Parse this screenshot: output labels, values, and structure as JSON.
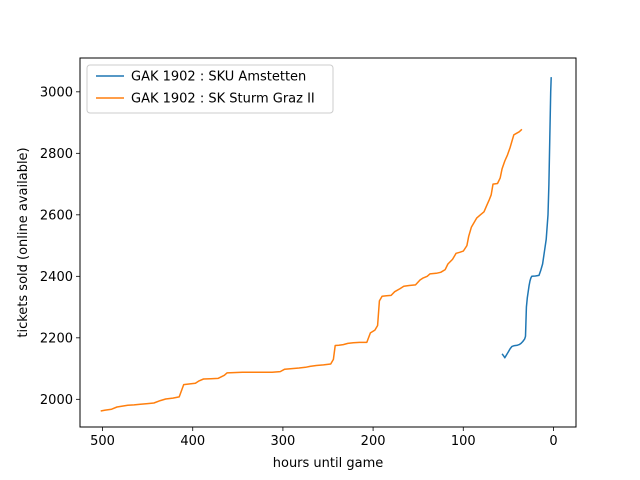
{
  "chart_data": {
    "type": "line",
    "xlabel": "hours until game",
    "ylabel": "tickets sold (online available)",
    "xlim": [
      525,
      -25
    ],
    "ylim": [
      1910,
      3110
    ],
    "x_ticks": [
      500,
      400,
      300,
      200,
      100,
      0
    ],
    "y_ticks": [
      2000,
      2200,
      2400,
      2600,
      2800,
      3000
    ],
    "grid": false,
    "legend_position": "top-left",
    "series": [
      {
        "name": "GAK 1902 : SKU Amstetten",
        "color": "#1f77b4",
        "points": [
          [
            57,
            2148
          ],
          [
            55,
            2140
          ],
          [
            54,
            2135
          ],
          [
            52,
            2145
          ],
          [
            50,
            2155
          ],
          [
            48,
            2165
          ],
          [
            46,
            2172
          ],
          [
            44,
            2174
          ],
          [
            42,
            2175
          ],
          [
            40,
            2176
          ],
          [
            38,
            2178
          ],
          [
            36,
            2182
          ],
          [
            34,
            2188
          ],
          [
            32,
            2196
          ],
          [
            31,
            2205
          ],
          [
            30,
            2300
          ],
          [
            29,
            2330
          ],
          [
            28,
            2350
          ],
          [
            27,
            2370
          ],
          [
            26,
            2385
          ],
          [
            25,
            2395
          ],
          [
            24,
            2400
          ],
          [
            20,
            2401
          ],
          [
            16,
            2403
          ],
          [
            14,
            2420
          ],
          [
            12,
            2440
          ],
          [
            10,
            2480
          ],
          [
            8,
            2520
          ],
          [
            6,
            2600
          ],
          [
            5,
            2700
          ],
          [
            4,
            2850
          ],
          [
            3,
            3000
          ],
          [
            2.5,
            3048
          ]
        ]
      },
      {
        "name": "GAK 1902 : SK Sturm Graz II",
        "color": "#ff7f0e",
        "points": [
          [
            502,
            1962
          ],
          [
            497,
            1965
          ],
          [
            490,
            1968
          ],
          [
            484,
            1975
          ],
          [
            478,
            1978
          ],
          [
            472,
            1981
          ],
          [
            465,
            1982
          ],
          [
            458,
            1984
          ],
          [
            450,
            1986
          ],
          [
            443,
            1988
          ],
          [
            436,
            1996
          ],
          [
            430,
            2001
          ],
          [
            422,
            2004
          ],
          [
            415,
            2008
          ],
          [
            410,
            2048
          ],
          [
            403,
            2050
          ],
          [
            397,
            2052
          ],
          [
            393,
            2060
          ],
          [
            388,
            2066
          ],
          [
            380,
            2067
          ],
          [
            372,
            2068
          ],
          [
            365,
            2078
          ],
          [
            362,
            2086
          ],
          [
            355,
            2087
          ],
          [
            345,
            2088
          ],
          [
            335,
            2088
          ],
          [
            325,
            2088
          ],
          [
            312,
            2088
          ],
          [
            303,
            2090
          ],
          [
            298,
            2098
          ],
          [
            290,
            2100
          ],
          [
            282,
            2102
          ],
          [
            275,
            2104
          ],
          [
            270,
            2107
          ],
          [
            263,
            2110
          ],
          [
            255,
            2112
          ],
          [
            247,
            2115
          ],
          [
            244,
            2130
          ],
          [
            242,
            2175
          ],
          [
            238,
            2176
          ],
          [
            233,
            2178
          ],
          [
            228,
            2182
          ],
          [
            222,
            2184
          ],
          [
            215,
            2185
          ],
          [
            207,
            2185
          ],
          [
            203,
            2216
          ],
          [
            198,
            2225
          ],
          [
            195,
            2240
          ],
          [
            193,
            2320
          ],
          [
            190,
            2335
          ],
          [
            185,
            2337
          ],
          [
            180,
            2338
          ],
          [
            176,
            2350
          ],
          [
            170,
            2360
          ],
          [
            166,
            2368
          ],
          [
            160,
            2370
          ],
          [
            153,
            2372
          ],
          [
            148,
            2388
          ],
          [
            145,
            2394
          ],
          [
            140,
            2400
          ],
          [
            137,
            2408
          ],
          [
            130,
            2410
          ],
          [
            125,
            2413
          ],
          [
            120,
            2422
          ],
          [
            117,
            2440
          ],
          [
            112,
            2455
          ],
          [
            108,
            2475
          ],
          [
            104,
            2478
          ],
          [
            100,
            2482
          ],
          [
            96,
            2500
          ],
          [
            94,
            2530
          ],
          [
            91,
            2560
          ],
          [
            88,
            2575
          ],
          [
            85,
            2590
          ],
          [
            81,
            2600
          ],
          [
            77,
            2610
          ],
          [
            74,
            2630
          ],
          [
            71,
            2650
          ],
          [
            69,
            2665
          ],
          [
            67,
            2700
          ],
          [
            62,
            2702
          ],
          [
            59,
            2720
          ],
          [
            57,
            2750
          ],
          [
            54,
            2775
          ],
          [
            51,
            2795
          ],
          [
            48,
            2820
          ],
          [
            46,
            2840
          ],
          [
            44,
            2860
          ],
          [
            41,
            2865
          ],
          [
            38,
            2870
          ],
          [
            35,
            2878
          ]
        ]
      }
    ]
  }
}
